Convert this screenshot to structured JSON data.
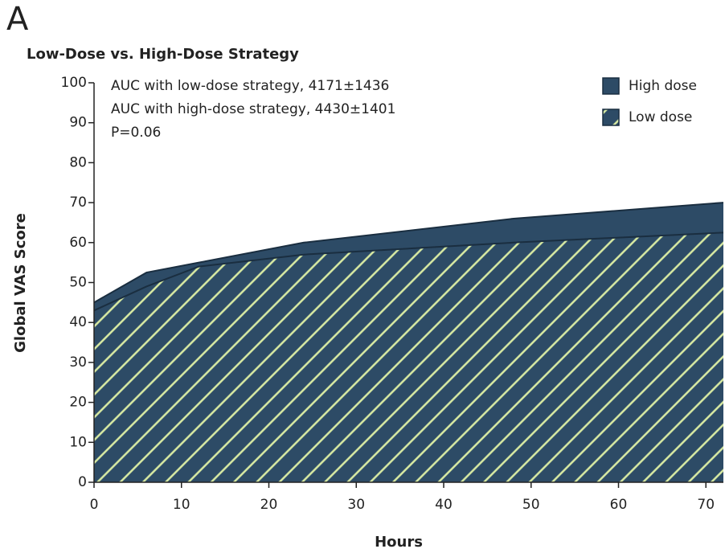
{
  "chart_data": {
    "type": "area",
    "panel_label": "A",
    "title": "Low-Dose vs. High-Dose Strategy",
    "annotations": [
      "AUC with low-dose strategy, 4171±1436",
      "AUC with high-dose strategy, 4430±1401",
      "P=0.06"
    ],
    "x_label": "Hours",
    "y_label": "Global VAS Score",
    "x": [
      0,
      6,
      12,
      24,
      48,
      72
    ],
    "series": [
      {
        "name": "High dose",
        "color": "#2d4b66",
        "hatch": false,
        "values": [
          45,
          52.5,
          55,
          60,
          66,
          70
        ]
      },
      {
        "name": "Low dose",
        "color": "#2d4b66",
        "hatch": true,
        "hatch_color": "#d9eba3",
        "values": [
          43,
          49,
          54,
          57,
          60,
          62.5
        ]
      }
    ],
    "xlim": [
      0,
      72
    ],
    "xticks": [
      0,
      10,
      20,
      30,
      40,
      50,
      60,
      70
    ],
    "ylim": [
      0,
      100
    ],
    "yticks": [
      0,
      10,
      20,
      30,
      40,
      50,
      60,
      70,
      80,
      90,
      100
    ],
    "legend": "upper right"
  }
}
